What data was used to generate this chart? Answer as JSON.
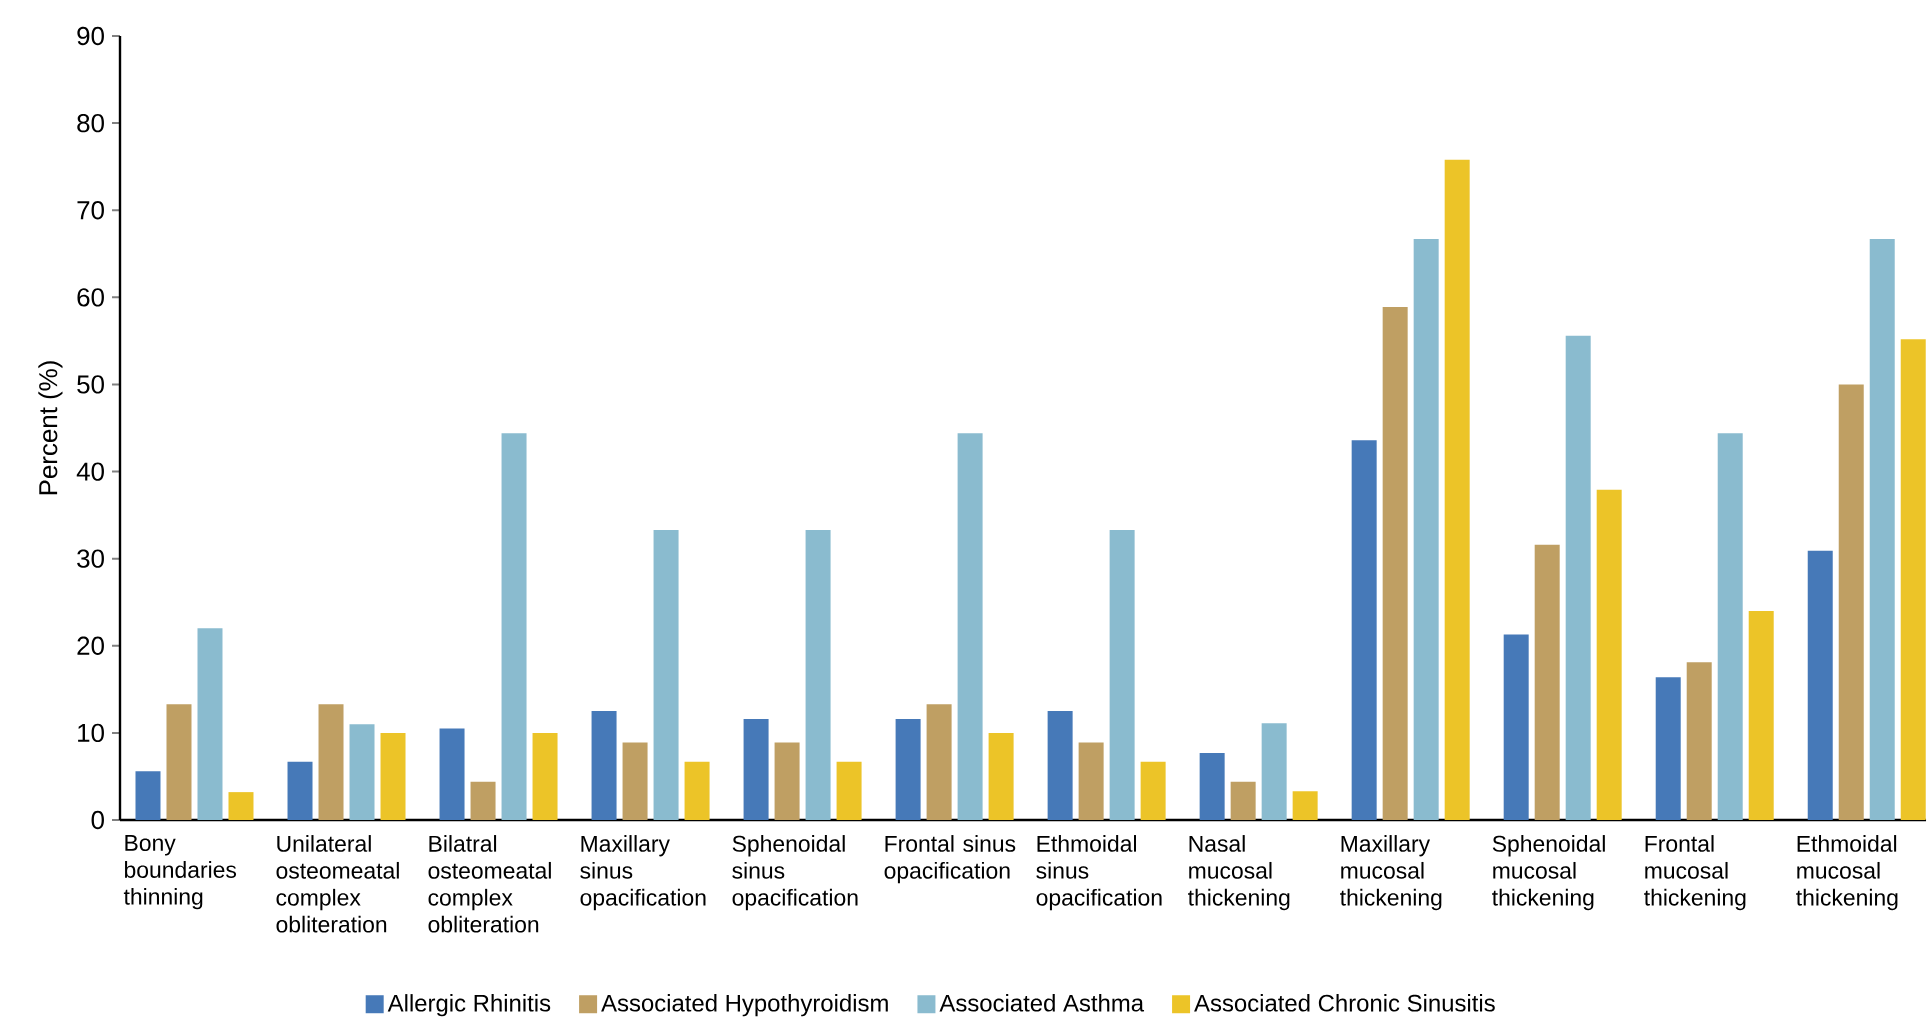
{
  "chart_data": {
    "type": "bar",
    "ylabel": "Percent (%)",
    "categories": [
      "Bony boundaries thinning",
      "Unilateral osteomeatal complex obliteration",
      "Bilatral osteomeatal complex obliteration",
      "Maxillary sinus opacification",
      "Sphenoidal sinus opacification",
      "Frontal sinus opacification",
      "Ethmoidal sinus opacification",
      "Nasal mucosal thickening",
      "Maxillary mucosal thickening",
      "Sphenoidal mucosal thickening",
      "Frontal mucosal thickening",
      "Ethmoidal mucosal thickening"
    ],
    "series": [
      {
        "name": "Allergic Rhinitis",
        "color": "#4679b8",
        "values": [
          5.6,
          6.7,
          10.5,
          12.5,
          11.6,
          11.6,
          12.5,
          7.7,
          43.6,
          21.3,
          16.4,
          30.9
        ]
      },
      {
        "name": "Associated Hypothyroidism",
        "color": "#bf9f63",
        "values": [
          13.3,
          13.3,
          4.4,
          8.9,
          8.9,
          13.3,
          8.9,
          4.4,
          58.9,
          31.6,
          18.1,
          50
        ]
      },
      {
        "name": "Associated Asthma",
        "color": "#8abbcf",
        "values": [
          22,
          11,
          44.4,
          33.3,
          33.3,
          44.4,
          33.3,
          11.1,
          66.7,
          55.6,
          44.4,
          66.7
        ]
      },
      {
        "name": "Associated Chronic Sinusitis",
        "color": "#ecc428",
        "values": [
          3.2,
          10,
          10,
          6.7,
          6.7,
          10,
          6.7,
          3.3,
          75.8,
          37.9,
          24,
          55.2
        ]
      }
    ],
    "ylim": [
      0,
      90
    ],
    "yticks": [
      0,
      10,
      20,
      30,
      40,
      50,
      60,
      70,
      80,
      90
    ],
    "legend": "bottom"
  }
}
